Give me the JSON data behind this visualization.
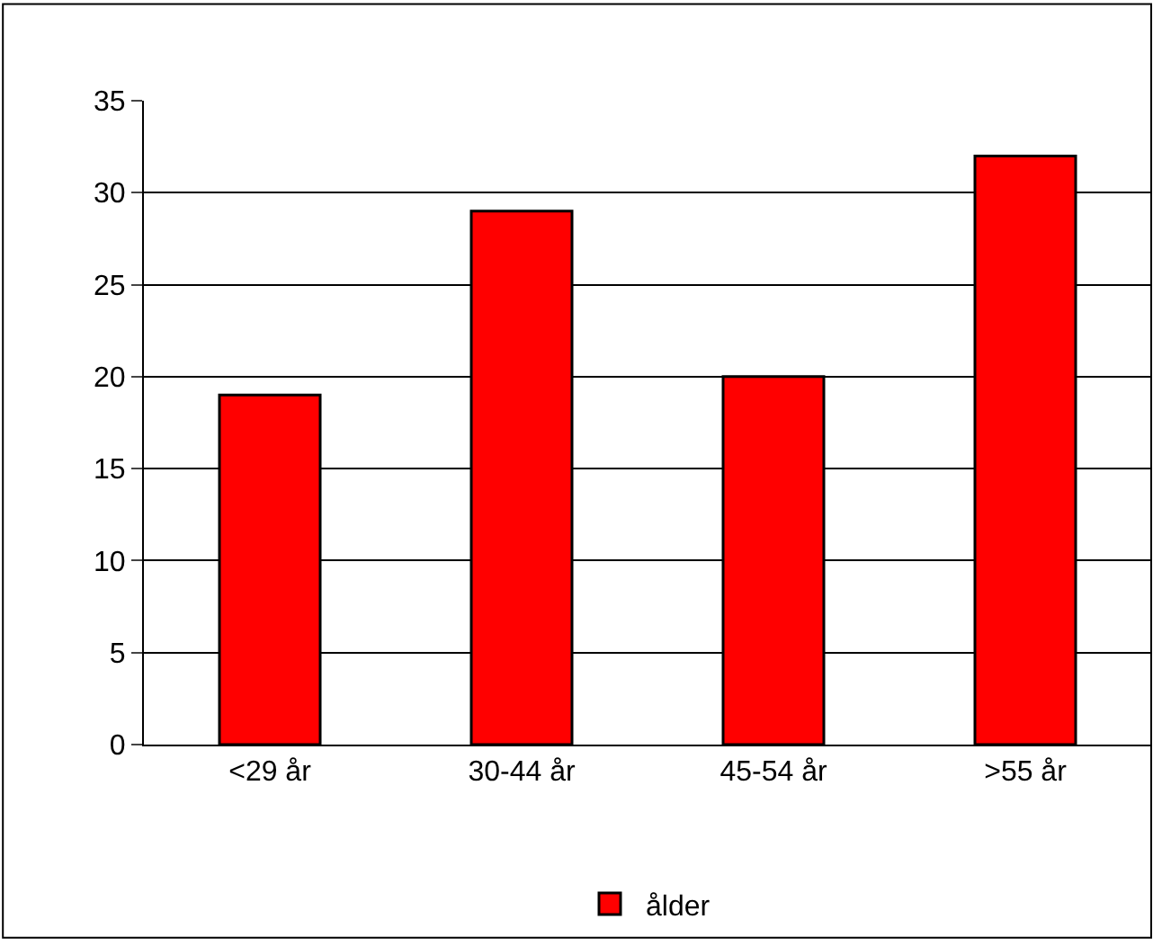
{
  "chart_data": {
    "type": "bar",
    "categories": [
      "<29 år",
      "30-44 år",
      "45-54 år",
      ">55 år"
    ],
    "series": [
      {
        "name": "ålder",
        "color": "#ff0000",
        "values": [
          19,
          29,
          20,
          32
        ]
      }
    ],
    "ylim": [
      0,
      35
    ],
    "yticks": [
      0,
      5,
      10,
      15,
      20,
      25,
      30,
      35
    ],
    "grid": "y",
    "legend": "bottom"
  }
}
